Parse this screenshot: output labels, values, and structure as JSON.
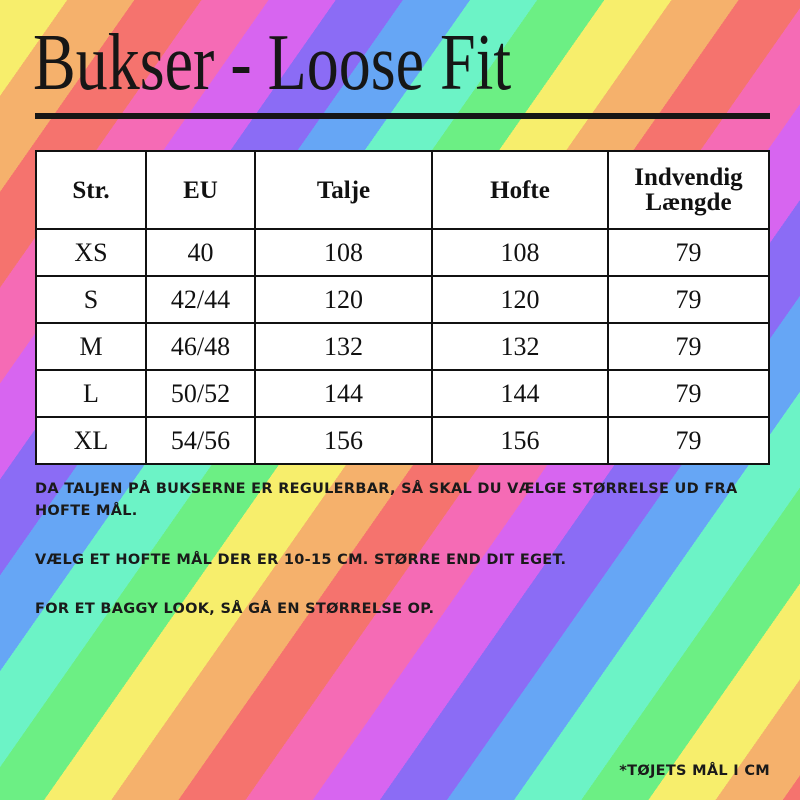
{
  "title": "Bukser - Loose Fit",
  "table": {
    "headers": [
      "Str.",
      "EU",
      "Talje",
      "Hofte",
      "Indvendig Længde"
    ],
    "rows": [
      [
        "XS",
        "40",
        "108",
        "108",
        "79"
      ],
      [
        "S",
        "42/44",
        "120",
        "120",
        "79"
      ],
      [
        "M",
        "46/48",
        "132",
        "132",
        "79"
      ],
      [
        "L",
        "50/52",
        "144",
        "144",
        "79"
      ],
      [
        "XL",
        "54/56",
        "156",
        "156",
        "79"
      ]
    ]
  },
  "notes": [
    "DA TALJEN PÅ BUKSERNE ER REGULERBAR, SÅ SKAL DU VÆLGE STØRRELSE UD FRA HOFTE MÅL.",
    "VÆLG ET HOFTE MÅL DER ER 10-15 CM. STØRRE END DIT EGET.",
    "FOR ET BAGGY LOOK, SÅ GÅ EN STØRRELSE OP."
  ],
  "footnote": "*TØJETS MÅL I CM",
  "colors": {
    "stripes": [
      "#f7ee6c",
      "#f5b16c",
      "#f5736e",
      "#f56bb5",
      "#d765f0",
      "#8b6cf5",
      "#66a6f5",
      "#6cf3c6",
      "#6cef84"
    ],
    "text": "#161616"
  }
}
